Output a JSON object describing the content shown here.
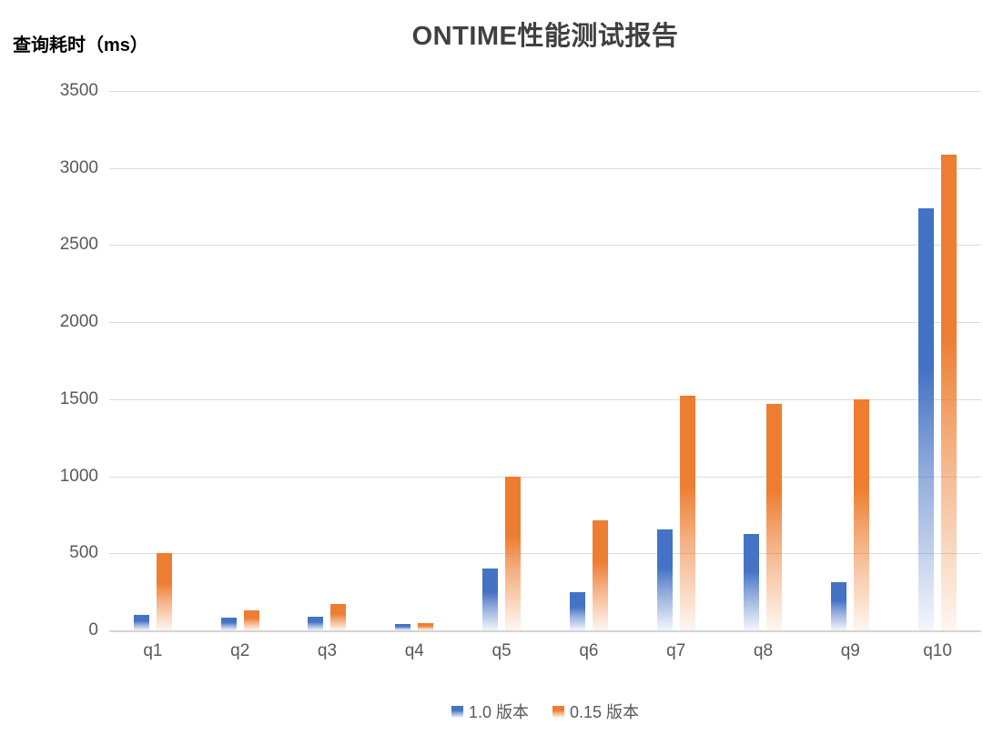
{
  "chart_data": {
    "type": "bar",
    "title": "ONTIME性能测试报告",
    "ylabel": "查询耗时（ms）",
    "categories": [
      "q1",
      "q2",
      "q3",
      "q4",
      "q5",
      "q6",
      "q7",
      "q8",
      "q9",
      "q10"
    ],
    "series": [
      {
        "name": "1.0 版本",
        "color": "#4472C4",
        "values": [
          100,
          85,
          90,
          40,
          400,
          250,
          655,
          625,
          310,
          2740
        ]
      },
      {
        "name": "0.15 版本",
        "color": "#ED7D31",
        "values": [
          500,
          130,
          170,
          50,
          1000,
          715,
          1525,
          1470,
          1500,
          3085
        ]
      }
    ],
    "ylim": [
      0,
      3500
    ],
    "yticks": [
      0,
      500,
      1000,
      1500,
      2000,
      2500,
      3000,
      3500
    ],
    "grid": true,
    "legend_position": "bottom",
    "colors": {
      "title_text": "#404040",
      "axis_text": "#595959",
      "gridline": "#DCDCDC",
      "background": "#FFFFFF"
    }
  }
}
